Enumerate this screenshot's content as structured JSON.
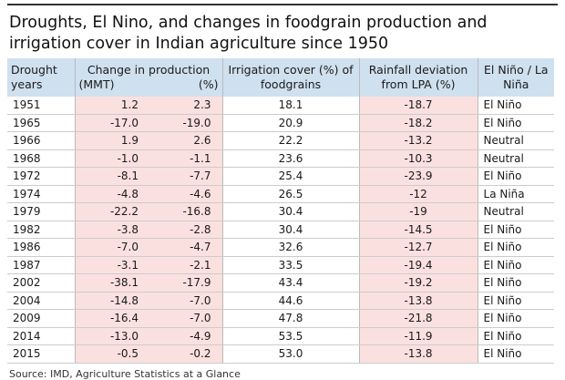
{
  "header": {
    "title": "Droughts, El Nino, and changes in foodgrain production and irrigation cover in Indian agriculture since 1950"
  },
  "table": {
    "columns": {
      "years": "Drought years",
      "production": "Change in production",
      "mmt": "(MMT)",
      "pct": "(%)",
      "irrigation": "Irrigation cover (%) of foodgrains",
      "rainfall": "Rainfall deviation from LPA (%)",
      "enso": "El Niño / La Niña"
    },
    "rows": [
      [
        "1951",
        "1.2",
        "2.3",
        "18.1",
        "-18.7",
        "El Niño"
      ],
      [
        "1965",
        "-17.0",
        "-19.0",
        "20.9",
        "-18.2",
        "El Niño"
      ],
      [
        "1966",
        "1.9",
        "2.6",
        "22.2",
        "-13.2",
        "Neutral"
      ],
      [
        "1968",
        "-1.0",
        "-1.1",
        "23.6",
        "-10.3",
        "Neutral"
      ],
      [
        "1972",
        "-8.1",
        "-7.7",
        "25.4",
        "-23.9",
        "El Niño"
      ],
      [
        "1974",
        "-4.8",
        "-4.6",
        "26.5",
        "-12",
        "La Niña"
      ],
      [
        "1979",
        "-22.2",
        "-16.8",
        "30.4",
        "-19",
        "Neutral"
      ],
      [
        "1982",
        "-3.8",
        "-2.8",
        "30.4",
        "-14.5",
        "El Niño"
      ],
      [
        "1986",
        "-7.0",
        "-4.7",
        "32.6",
        "-12.7",
        "El Niño"
      ],
      [
        "1987",
        "-3.1",
        "-2.1",
        "33.5",
        "-19.4",
        "El Niño"
      ],
      [
        "2002",
        "-38.1",
        "-17.9",
        "43.4",
        "-19.2",
        "El Niño"
      ],
      [
        "2004",
        "-14.8",
        "-7.0",
        "44.6",
        "-13.8",
        "El Niño"
      ],
      [
        "2009",
        "-16.4",
        "-7.0",
        "47.8",
        "-21.8",
        "El Niño"
      ],
      [
        "2014",
        "-13.0",
        "-4.9",
        "53.5",
        "-11.9",
        "El Niño"
      ],
      [
        "2015",
        "-0.5",
        "-0.2",
        "53.0",
        "-13.8",
        "El Niño"
      ]
    ]
  },
  "footer": {
    "source": "Source: IMD, Agriculture Statistics at a Glance"
  }
}
